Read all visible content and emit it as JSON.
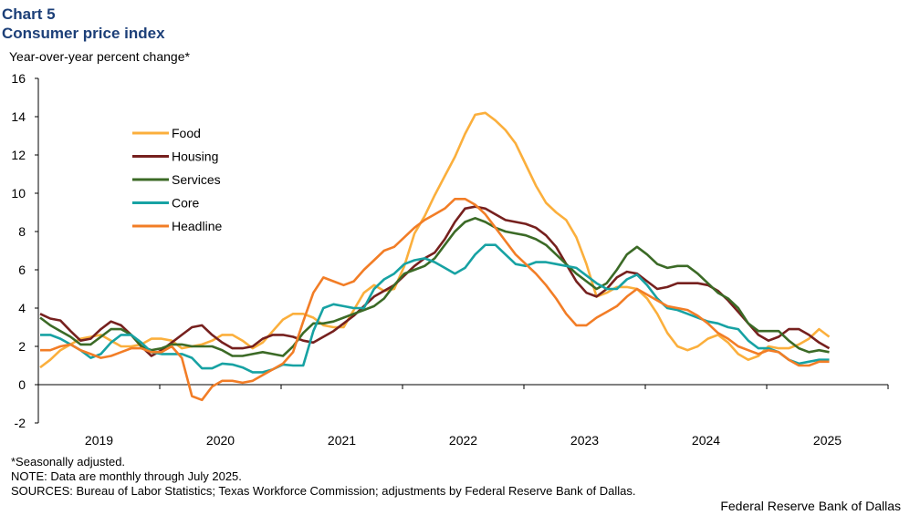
{
  "chart_label": "Chart 5",
  "chart_data": {
    "type": "line",
    "title": "Consumer price index",
    "ylabel": "Year-over-year  percent change*",
    "xlabel": "",
    "ylim": [
      -2,
      16
    ],
    "yticks": [
      "-2",
      "0",
      "2",
      "4",
      "6",
      "8",
      "10",
      "12",
      "14",
      "16"
    ],
    "xticks": [
      "2019",
      "2020",
      "2021",
      "2022",
      "2023",
      "2024",
      "2025"
    ],
    "x_start": "Jan 2019",
    "x_end": "Jul 2025",
    "frequency": "monthly",
    "legend_position": "top-left",
    "series": [
      {
        "name": "Food",
        "color": "#FBAF3C",
        "values": [
          0.9,
          1.3,
          1.8,
          2.1,
          2.4,
          2.5,
          2.6,
          2.3,
          2.0,
          2.0,
          2.1,
          2.4,
          2.4,
          2.3,
          1.9,
          2.0,
          2.1,
          2.3,
          2.6,
          2.6,
          2.3,
          1.9,
          2.2,
          2.8,
          3.4,
          3.7,
          3.7,
          3.5,
          3.1,
          3.0,
          3.0,
          3.9,
          4.8,
          5.2,
          4.9,
          5.0,
          6.2,
          7.9,
          8.8,
          9.9,
          10.9,
          11.9,
          13.1,
          14.1,
          14.2,
          13.8,
          13.3,
          12.6,
          11.5,
          10.4,
          9.5,
          9.0,
          8.6,
          7.7,
          6.3,
          4.6,
          4.8,
          5.1,
          5.1,
          5.0,
          4.5,
          3.7,
          2.7,
          2.0,
          1.8,
          2.0,
          2.4,
          2.6,
          2.2,
          1.6,
          1.3,
          1.5,
          2.0,
          1.9,
          1.9,
          2.1,
          2.4,
          2.9,
          2.5
        ]
      },
      {
        "name": "Housing",
        "color": "#76201E",
        "values": [
          3.7,
          3.45,
          3.35,
          2.8,
          2.3,
          2.4,
          2.9,
          3.3,
          3.1,
          2.6,
          2.0,
          1.5,
          1.8,
          2.2,
          2.6,
          3.0,
          3.1,
          2.6,
          2.2,
          1.9,
          1.9,
          2.0,
          2.4,
          2.6,
          2.6,
          2.5,
          2.3,
          2.2,
          2.5,
          2.8,
          3.2,
          3.6,
          4.1,
          4.6,
          4.9,
          5.2,
          5.7,
          6.2,
          6.6,
          6.9,
          7.6,
          8.5,
          9.2,
          9.3,
          9.2,
          8.9,
          8.6,
          8.5,
          8.4,
          8.2,
          7.8,
          7.2,
          6.3,
          5.4,
          4.8,
          4.6,
          5.0,
          5.6,
          5.9,
          5.8,
          5.4,
          5.0,
          5.1,
          5.3,
          5.3,
          5.3,
          5.2,
          4.9,
          4.4,
          3.8,
          3.2,
          2.6,
          2.3,
          2.5,
          2.9,
          2.9,
          2.6,
          2.2,
          1.9
        ]
      },
      {
        "name": "Services",
        "color": "#3B6A26",
        "values": [
          3.5,
          3.1,
          2.8,
          2.5,
          2.1,
          2.1,
          2.5,
          2.9,
          2.9,
          2.6,
          2.0,
          1.8,
          1.9,
          2.1,
          2.1,
          2.0,
          2.0,
          2.0,
          1.8,
          1.5,
          1.5,
          1.6,
          1.7,
          1.6,
          1.5,
          2.0,
          2.7,
          3.2,
          3.2,
          3.3,
          3.5,
          3.7,
          3.9,
          4.1,
          4.5,
          5.2,
          5.8,
          6.0,
          6.2,
          6.6,
          7.3,
          8.0,
          8.5,
          8.7,
          8.5,
          8.2,
          8.0,
          7.9,
          7.8,
          7.6,
          7.3,
          6.8,
          6.3,
          5.8,
          5.4,
          5.0,
          5.3,
          6.0,
          6.8,
          7.2,
          6.8,
          6.3,
          6.1,
          6.2,
          6.2,
          5.8,
          5.3,
          4.8,
          4.5,
          4.0,
          3.2,
          2.8,
          2.8,
          2.8,
          2.3,
          1.9,
          1.7,
          1.8,
          1.7
        ]
      },
      {
        "name": "Core",
        "color": "#17A2A3",
        "values": [
          2.6,
          2.6,
          2.4,
          2.1,
          1.8,
          1.4,
          1.6,
          2.2,
          2.6,
          2.6,
          2.2,
          1.7,
          1.6,
          1.6,
          1.6,
          1.4,
          0.85,
          0.85,
          1.1,
          1.05,
          0.9,
          0.65,
          0.65,
          0.8,
          1.05,
          1.0,
          1.0,
          2.8,
          4.0,
          4.2,
          4.1,
          4.0,
          4.0,
          5.0,
          5.5,
          5.8,
          6.3,
          6.5,
          6.6,
          6.4,
          6.1,
          5.8,
          6.1,
          6.8,
          7.3,
          7.3,
          6.8,
          6.3,
          6.2,
          6.4,
          6.4,
          6.3,
          6.2,
          6.1,
          5.7,
          5.3,
          5.0,
          5.0,
          5.5,
          5.75,
          5.2,
          4.5,
          4.0,
          3.9,
          3.7,
          3.5,
          3.3,
          3.2,
          3.0,
          2.9,
          2.3,
          1.9,
          1.9,
          1.7,
          1.3,
          1.1,
          1.2,
          1.3,
          1.3
        ]
      },
      {
        "name": "Headline",
        "color": "#F27D26",
        "values": [
          1.8,
          1.8,
          2.0,
          2.1,
          1.8,
          1.6,
          1.4,
          1.5,
          1.7,
          1.9,
          1.9,
          1.7,
          1.7,
          2.0,
          1.4,
          -0.6,
          -0.8,
          -0.1,
          0.2,
          0.2,
          0.1,
          0.2,
          0.5,
          0.8,
          1.1,
          1.7,
          3.3,
          4.8,
          5.6,
          5.4,
          5.2,
          5.4,
          6.0,
          6.5,
          7.0,
          7.2,
          7.7,
          8.2,
          8.6,
          8.9,
          9.2,
          9.7,
          9.7,
          9.4,
          8.9,
          8.2,
          7.5,
          6.8,
          6.3,
          5.8,
          5.2,
          4.5,
          3.7,
          3.1,
          3.1,
          3.5,
          3.8,
          4.1,
          4.6,
          5.0,
          4.7,
          4.4,
          4.1,
          4.0,
          3.9,
          3.6,
          3.2,
          2.7,
          2.4,
          2.0,
          1.8,
          1.6,
          1.8,
          1.7,
          1.3,
          1.0,
          1.0,
          1.2,
          1.2
        ]
      }
    ]
  },
  "notes": [
    "*Seasonally adjusted.",
    "NOTE: Data are monthly through July 2025.",
    "SOURCES: Bureau of Labor Statistics; Texas Workforce Commission; adjustments by Federal Reserve Bank of Dallas."
  ],
  "credit": "Federal Reserve Bank of Dallas"
}
